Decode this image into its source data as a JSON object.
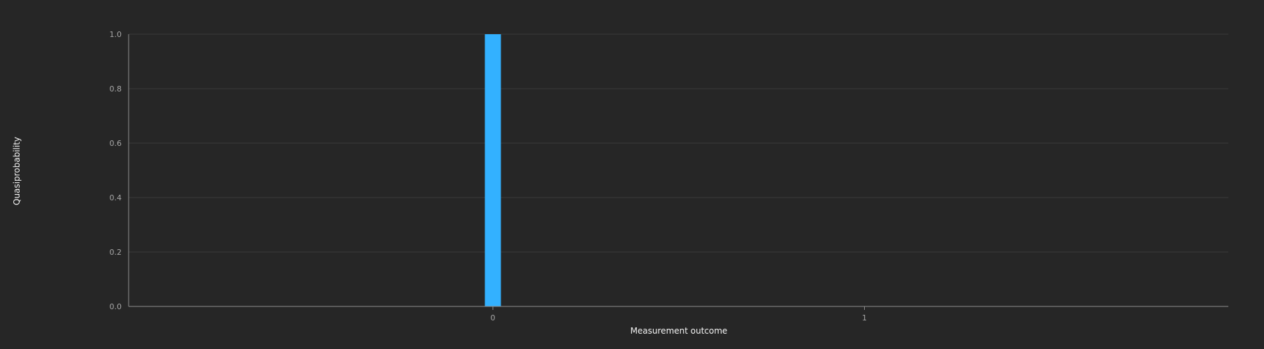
{
  "chart_data": {
    "type": "bar",
    "categories": [
      "0",
      "1"
    ],
    "values": [
      1.0,
      0.0
    ],
    "title": "",
    "xlabel": "Measurement outcome",
    "ylabel": "Quasiprobability",
    "ylim": [
      0,
      1.0
    ],
    "yticks": [
      "0.0",
      "0.2",
      "0.4",
      "0.6",
      "0.8",
      "1.0"
    ],
    "grid": true,
    "legend": "none"
  },
  "colors": {
    "background": "#262626",
    "bar": "#33b1ff",
    "grid": "#393939",
    "axis": "#8d8d8d"
  }
}
